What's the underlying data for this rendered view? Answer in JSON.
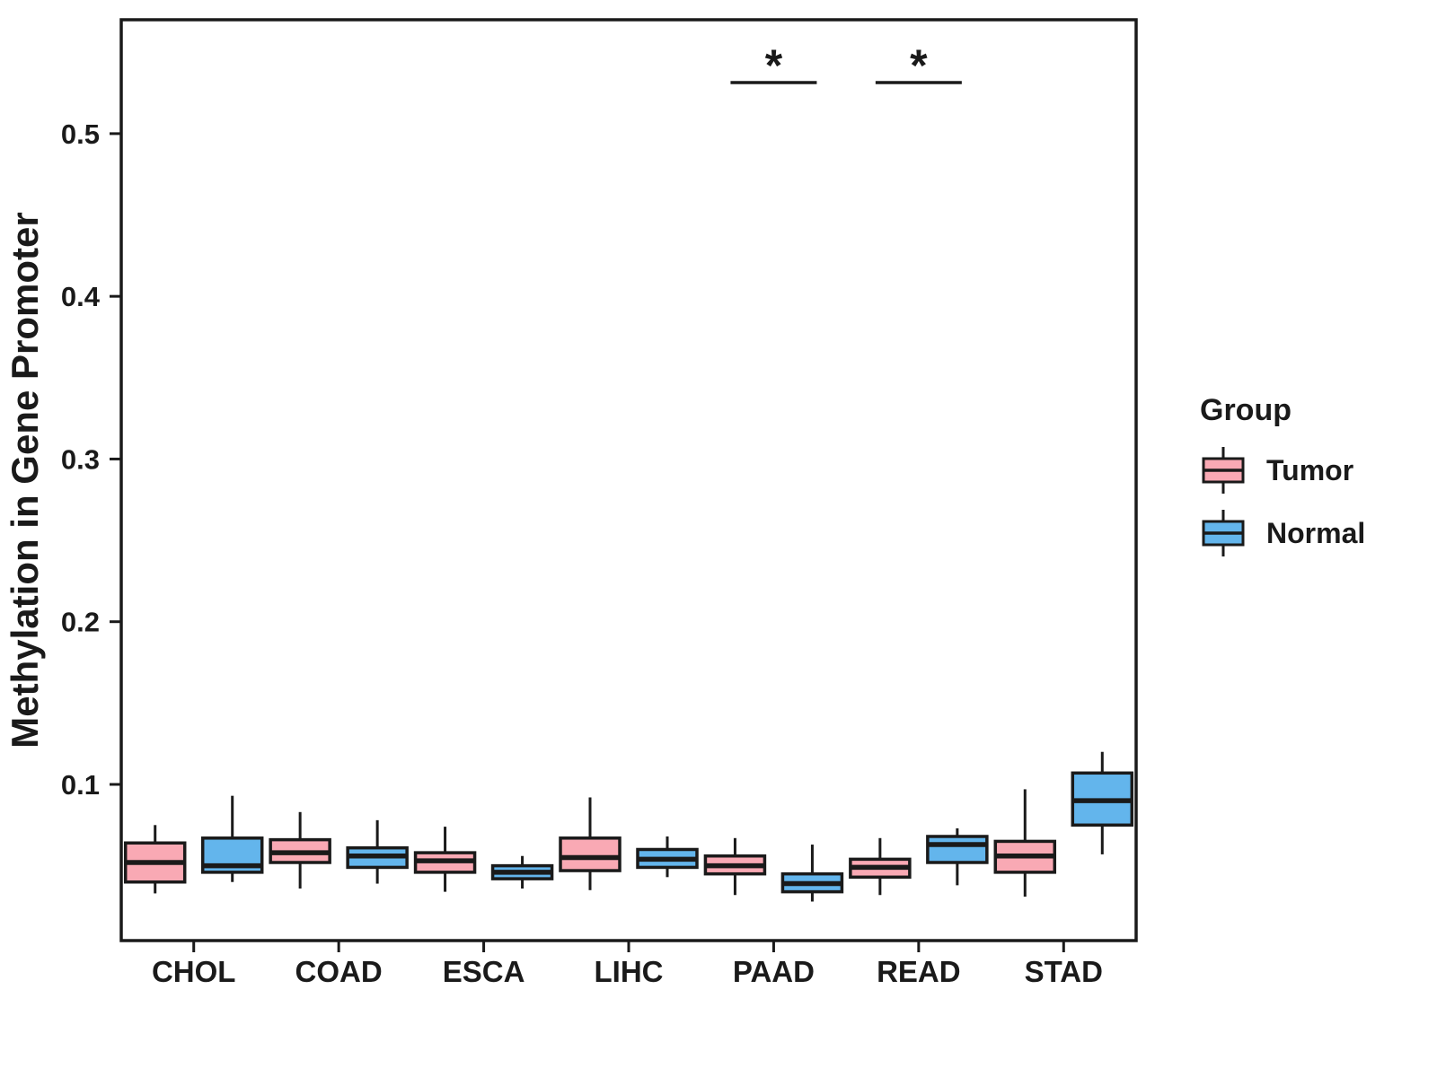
{
  "chart_data": {
    "type": "boxplot",
    "title": "",
    "xlabel": "",
    "ylabel": "Methylation in Gene Promoter",
    "legend_title": "Group",
    "legend_position": "right",
    "grid": false,
    "categories": [
      "CHOL",
      "COAD",
      "ESCA",
      "LIHC",
      "PAAD",
      "READ",
      "STAD"
    ],
    "y_tick_values": [
      0.1,
      0.2,
      0.3,
      0.4,
      0.5
    ],
    "y_tick_labels": [
      "0.1",
      "0.2",
      "0.3",
      "0.4",
      "0.5"
    ],
    "ylim": [
      0.004,
      0.57
    ],
    "series": [
      {
        "name": "Tumor",
        "color": "#F9A9B4",
        "boxes": [
          {
            "low": 0.033,
            "q1": 0.04,
            "median": 0.052,
            "q3": 0.064,
            "high": 0.075
          },
          {
            "low": 0.036,
            "q1": 0.052,
            "median": 0.058,
            "q3": 0.066,
            "high": 0.083
          },
          {
            "low": 0.034,
            "q1": 0.046,
            "median": 0.053,
            "q3": 0.058,
            "high": 0.074
          },
          {
            "low": 0.035,
            "q1": 0.047,
            "median": 0.055,
            "q3": 0.067,
            "high": 0.092
          },
          {
            "low": 0.032,
            "q1": 0.045,
            "median": 0.05,
            "q3": 0.056,
            "high": 0.067
          },
          {
            "low": 0.032,
            "q1": 0.043,
            "median": 0.049,
            "q3": 0.054,
            "high": 0.067
          },
          {
            "low": 0.031,
            "q1": 0.046,
            "median": 0.056,
            "q3": 0.065,
            "high": 0.097
          }
        ]
      },
      {
        "name": "Normal",
        "color": "#63B5EC",
        "boxes": [
          {
            "low": 0.04,
            "q1": 0.046,
            "median": 0.05,
            "q3": 0.067,
            "high": 0.093
          },
          {
            "low": 0.039,
            "q1": 0.049,
            "median": 0.056,
            "q3": 0.061,
            "high": 0.078
          },
          {
            "low": 0.036,
            "q1": 0.042,
            "median": 0.046,
            "q3": 0.05,
            "high": 0.056
          },
          {
            "low": 0.043,
            "q1": 0.049,
            "median": 0.054,
            "q3": 0.06,
            "high": 0.068
          },
          {
            "low": 0.028,
            "q1": 0.034,
            "median": 0.039,
            "q3": 0.045,
            "high": 0.063
          },
          {
            "low": 0.038,
            "q1": 0.052,
            "median": 0.063,
            "q3": 0.068,
            "high": 0.073
          },
          {
            "low": 0.057,
            "q1": 0.075,
            "median": 0.09,
            "q3": 0.107,
            "high": 0.12
          }
        ]
      }
    ],
    "significance": [
      {
        "category": "PAAD",
        "label": "*"
      },
      {
        "category": "READ",
        "label": "*"
      }
    ]
  },
  "colors": {
    "axis": "#1a1a1a",
    "background": "#ffffff"
  }
}
